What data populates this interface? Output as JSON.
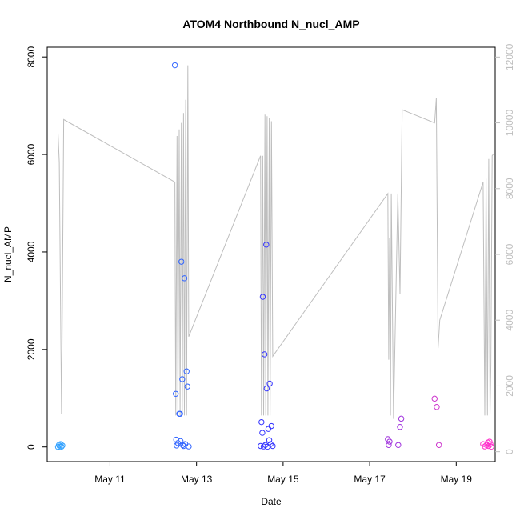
{
  "chart_data": {
    "type": "scatter",
    "title": "ATOM4 Northbound N_nucl_AMP",
    "xlabel": "Date",
    "ylabel": "N_nucl_AMP",
    "x_ticks": [
      "May 11",
      "May 13",
      "May 15",
      "May 17",
      "May 19"
    ],
    "y_ticks": [
      "0",
      "2000",
      "4000",
      "6000",
      "8000"
    ],
    "y2_ticks": [
      "0",
      "2000",
      "4000",
      "6000",
      "8000",
      "10000",
      "12000"
    ],
    "xlim_days": [
      9.55,
      19.9
    ],
    "ylim": [
      -300,
      8200
    ],
    "y2lim": [
      -300,
      12300
    ],
    "grid": false,
    "colors": {
      "axis": "#000000",
      "line": "#bebebe",
      "right_axis": "#bebebe"
    },
    "series": [
      {
        "type": "points",
        "points": [
          {
            "x": 9.8,
            "y": 0,
            "color": "#33a2ff"
          },
          {
            "x": 9.82,
            "y": 40,
            "color": "#33a2ff"
          },
          {
            "x": 9.84,
            "y": 10,
            "color": "#33a2ff"
          },
          {
            "x": 9.86,
            "y": 60,
            "color": "#33a2ff"
          },
          {
            "x": 9.88,
            "y": 5,
            "color": "#33a2ff"
          },
          {
            "x": 9.9,
            "y": 30,
            "color": "#33a2ff"
          },
          {
            "x": 12.5,
            "y": 7830,
            "color": "#3366ff"
          },
          {
            "x": 12.52,
            "y": 1090,
            "color": "#3366ff"
          },
          {
            "x": 12.53,
            "y": 150,
            "color": "#3366ff"
          },
          {
            "x": 12.54,
            "y": 30,
            "color": "#3366ff"
          },
          {
            "x": 12.57,
            "y": 80,
            "color": "#3366ff"
          },
          {
            "x": 12.6,
            "y": 680,
            "color": "#3366ff"
          },
          {
            "x": 12.62,
            "y": 680,
            "color": "#3366ff"
          },
          {
            "x": 12.63,
            "y": 120,
            "color": "#3366ff"
          },
          {
            "x": 12.65,
            "y": 3800,
            "color": "#3366ff"
          },
          {
            "x": 12.67,
            "y": 1390,
            "color": "#3366ff"
          },
          {
            "x": 12.68,
            "y": 40,
            "color": "#3366ff"
          },
          {
            "x": 12.7,
            "y": 20,
            "color": "#3366ff"
          },
          {
            "x": 12.72,
            "y": 3460,
            "color": "#3366ff"
          },
          {
            "x": 12.74,
            "y": 60,
            "color": "#3366ff"
          },
          {
            "x": 12.77,
            "y": 1550,
            "color": "#3366ff"
          },
          {
            "x": 12.79,
            "y": 1240,
            "color": "#3366ff"
          },
          {
            "x": 12.82,
            "y": 10,
            "color": "#3366ff"
          },
          {
            "x": 14.48,
            "y": 20,
            "color": "#3333ff"
          },
          {
            "x": 14.5,
            "y": 510,
            "color": "#3333ff"
          },
          {
            "x": 14.52,
            "y": 290,
            "color": "#3333ff"
          },
          {
            "x": 14.53,
            "y": 3080,
            "color": "#3333ff"
          },
          {
            "x": 14.55,
            "y": 10,
            "color": "#3333ff"
          },
          {
            "x": 14.57,
            "y": 1900,
            "color": "#3333ff"
          },
          {
            "x": 14.59,
            "y": 40,
            "color": "#3333ff"
          },
          {
            "x": 14.61,
            "y": 4150,
            "color": "#3333ff"
          },
          {
            "x": 14.62,
            "y": 1200,
            "color": "#3333ff"
          },
          {
            "x": 14.64,
            "y": 5,
            "color": "#3333ff"
          },
          {
            "x": 14.66,
            "y": 370,
            "color": "#3333ff"
          },
          {
            "x": 14.68,
            "y": 140,
            "color": "#3333ff"
          },
          {
            "x": 14.69,
            "y": 1300,
            "color": "#3333ff"
          },
          {
            "x": 14.71,
            "y": 60,
            "color": "#3333ff"
          },
          {
            "x": 14.73,
            "y": 430,
            "color": "#3333ff"
          },
          {
            "x": 14.76,
            "y": 20,
            "color": "#3333ff"
          },
          {
            "x": 17.42,
            "y": 160,
            "color": "#a033dd"
          },
          {
            "x": 17.44,
            "y": 40,
            "color": "#a033dd"
          },
          {
            "x": 17.46,
            "y": 110,
            "color": "#a033dd"
          },
          {
            "x": 17.66,
            "y": 40,
            "color": "#a033dd"
          },
          {
            "x": 17.7,
            "y": 410,
            "color": "#a033dd"
          },
          {
            "x": 17.73,
            "y": 580,
            "color": "#a033dd"
          },
          {
            "x": 18.5,
            "y": 990,
            "color": "#cc33cc"
          },
          {
            "x": 18.55,
            "y": 820,
            "color": "#cc33cc"
          },
          {
            "x": 18.6,
            "y": 40,
            "color": "#cc33cc"
          },
          {
            "x": 19.62,
            "y": 60,
            "color": "#ff33cc"
          },
          {
            "x": 19.66,
            "y": 10,
            "color": "#ff33cc"
          },
          {
            "x": 19.7,
            "y": 40,
            "color": "#ff33cc"
          },
          {
            "x": 19.73,
            "y": 90,
            "color": "#ff33cc"
          },
          {
            "x": 19.75,
            "y": 20,
            "color": "#ff33cc"
          },
          {
            "x": 19.77,
            "y": 110,
            "color": "#ff33cc"
          },
          {
            "x": 19.79,
            "y": 60,
            "color": "#ff33cc"
          },
          {
            "x": 19.81,
            "y": 5,
            "color": "#ff33cc"
          }
        ]
      },
      {
        "type": "line",
        "axis": "right",
        "x": [
          9.8,
          9.83,
          9.88,
          9.93,
          12.5,
          12.52,
          12.55,
          12.57,
          12.6,
          12.62,
          12.65,
          12.67,
          12.7,
          12.72,
          12.75,
          12.77,
          12.8,
          12.82,
          14.48,
          14.5,
          14.53,
          14.55,
          14.58,
          14.6,
          14.63,
          14.65,
          14.68,
          14.7,
          14.73,
          14.76,
          17.42,
          17.44,
          17.46,
          17.48,
          17.5,
          17.55,
          17.65,
          17.7,
          17.75,
          18.5,
          18.54,
          18.58,
          18.62,
          19.62,
          19.66,
          19.69,
          19.72,
          19.75,
          19.78,
          19.8,
          19.83,
          19.86
        ],
        "y": [
          9700,
          8800,
          1150,
          10100,
          8200,
          1100,
          9600,
          1100,
          9800,
          1100,
          10000,
          1100,
          10300,
          1100,
          10700,
          1100,
          11750,
          3500,
          9000,
          1100,
          9000,
          1100,
          10250,
          1100,
          10200,
          1100,
          10150,
          1100,
          10050,
          2900,
          7850,
          2800,
          6500,
          1100,
          7850,
          1000,
          7850,
          4800,
          10400,
          10000,
          10750,
          3150,
          4000,
          8200,
          1100,
          8300,
          1100,
          8900,
          1100,
          2650,
          9000,
          9050
        ]
      }
    ]
  }
}
